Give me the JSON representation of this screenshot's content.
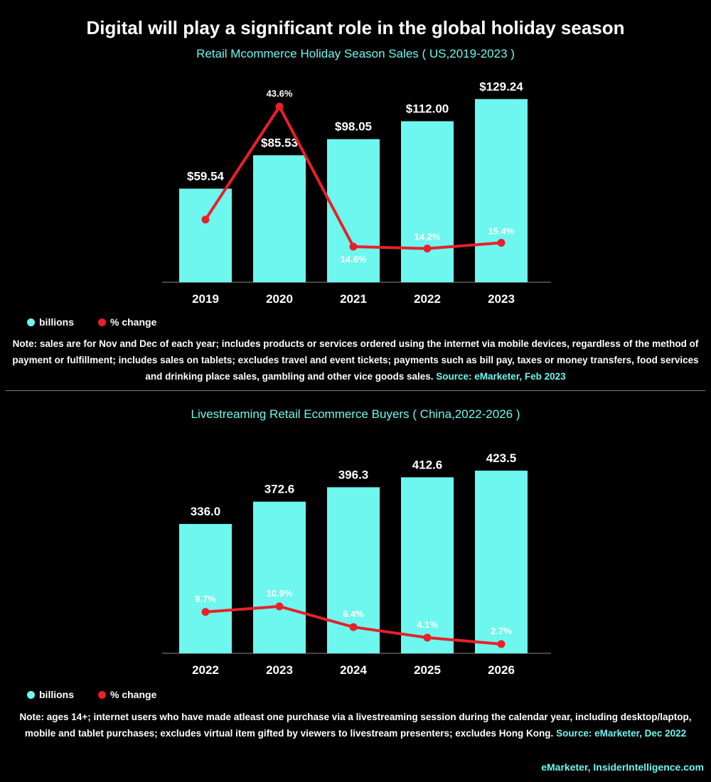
{
  "title": "Digital will play a significant role in the global holiday season",
  "colors": {
    "bar": "#6ef7ee",
    "line": "#e8202a",
    "background": "#000000",
    "accent_text": "#6ef7ee"
  },
  "chart_data": [
    {
      "type": "bar+line",
      "title": "Retail Mcommerce Holiday Season Sales ( US,2019-2023 )",
      "categories": [
        "2019",
        "2020",
        "2021",
        "2022",
        "2023"
      ],
      "series": [
        {
          "name": "billions",
          "type": "bar",
          "values": [
            59.54,
            85.53,
            98.05,
            112.0,
            129.24
          ],
          "labels": [
            "$59.54",
            "$85.53",
            "$98.05",
            "$112.00",
            "$129.24"
          ]
        },
        {
          "name": "% change",
          "type": "line",
          "values": [
            20.2,
            43.6,
            14.6,
            14.2,
            15.4
          ],
          "labels": [
            "",
            "43.6%",
            "14.6%",
            "14.2%",
            "15.4%"
          ]
        }
      ],
      "legend": "bottom-left",
      "grid": false,
      "note": "Note: sales are for Nov and Dec of each year; includes products or services ordered using the internet via mobile devices, regardless of the method of payment or fulfillment; includes sales on tablets; excludes travel and event tickets; payments such as bill pay, taxes or money transfers, food services and drinking place sales, gambling and other vice goods sales.",
      "source": "Source: eMarketer, Feb 2023"
    },
    {
      "type": "bar+line",
      "title": "Livestreaming Retail Ecommerce Buyers ( China,2022-2026 )",
      "categories": [
        "2022",
        "2023",
        "2024",
        "2025",
        "2026"
      ],
      "series": [
        {
          "name": "billions",
          "type": "bar",
          "values": [
            336.0,
            372.6,
            396.3,
            412.6,
            423.5
          ],
          "labels": [
            "336.0",
            "372.6",
            "396.3",
            "412.6",
            "423.5"
          ]
        },
        {
          "name": "% change",
          "type": "line",
          "values": [
            9.7,
            10.9,
            6.4,
            4.1,
            2.7
          ],
          "labels": [
            "9.7%",
            "10.9%",
            "6.4%",
            "4.1%",
            "2.7%"
          ]
        }
      ],
      "legend": "bottom-left",
      "grid": false,
      "note": "Note: ages 14+; internet users who have made atleast one purchase via a livestreaming session during the calendar year, including desktop/laptop, mobile and tablet purchases; excludes virtual item gifted by viewers to livestream presenters; excludes Hong Kong.",
      "source": "Source: eMarketer, Dec 2022"
    }
  ],
  "footer": "eMarketer, InsiderIntelligence.com"
}
